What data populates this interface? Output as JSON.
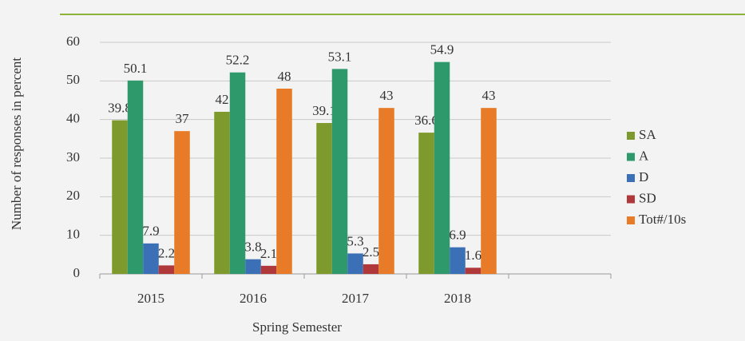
{
  "chart_data": {
    "type": "bar",
    "y_label": "Number of responses in percent",
    "x_label": "Spring Semester",
    "categories": [
      "2015",
      "2016",
      "2017",
      "2018",
      null
    ],
    "series": [
      {
        "name": "SA",
        "color": "#7f9a2c",
        "values": [
          39.8,
          42,
          39.1,
          36.6,
          null
        ]
      },
      {
        "name": "A",
        "color": "#2e9a6b",
        "values": [
          50.1,
          52.2,
          53.1,
          54.9,
          null
        ]
      },
      {
        "name": "D",
        "color": "#3b6fb6",
        "values": [
          7.9,
          3.8,
          5.3,
          6.9,
          null
        ]
      },
      {
        "name": "SD",
        "color": "#b0373a",
        "values": [
          2.2,
          2.1,
          2.5,
          1.6,
          null
        ]
      },
      {
        "name": "Tot#/10s",
        "color": "#e87b28",
        "values": [
          37,
          48,
          43,
          43,
          null
        ]
      }
    ],
    "ylim": [
      0,
      60
    ],
    "yticks": [
      0,
      10,
      20,
      30,
      40,
      50,
      60
    ],
    "grid": true,
    "legend": "right"
  }
}
